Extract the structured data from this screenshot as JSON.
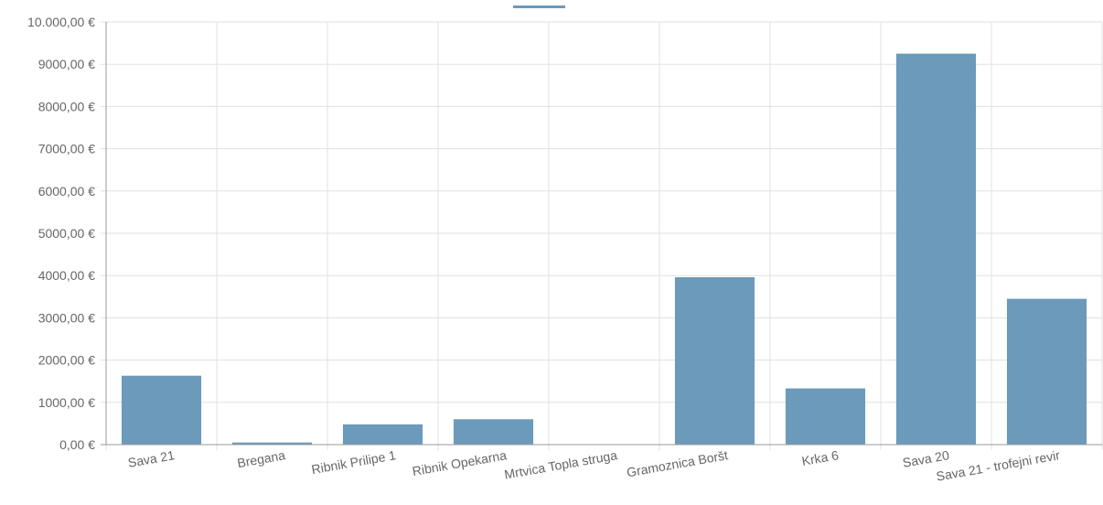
{
  "chart_data": {
    "type": "bar",
    "title": "",
    "xlabel": "",
    "ylabel": "",
    "categories": [
      "Sava 21",
      "Bregana",
      "Ribnik Prilipe 1",
      "Ribnik Opekarna",
      "Mrtvica Topla struga",
      "Gramoznica Boršt",
      "Krka 6",
      "Sava 20",
      "Sava 21 - trofejni revir"
    ],
    "series": [
      {
        "values": [
          1630,
          50,
          480,
          600,
          0,
          3960,
          1330,
          9250,
          3450
        ]
      }
    ],
    "ylim": [
      0,
      10000
    ],
    "yticks": [
      0,
      1000,
      2000,
      3000,
      4000,
      5000,
      6000,
      7000,
      8000,
      9000,
      10000
    ],
    "ytick_labels": [
      "0,00 €",
      "1000,00 €",
      "2000,00 €",
      "3000,00 €",
      "4000,00 €",
      "5000,00 €",
      "6000,00 €",
      "7000,00 €",
      "8000,00 €",
      "9000,00 €",
      "10.000,00 €"
    ],
    "grid": true,
    "legend": "top",
    "colors": {
      "bar": "#6b9abb",
      "grid": "#e1e1e1",
      "axis": "#999999",
      "text": "#666666"
    }
  }
}
